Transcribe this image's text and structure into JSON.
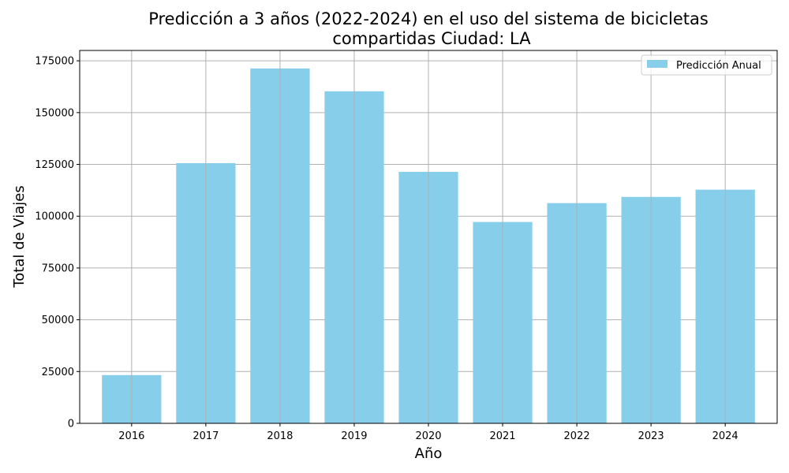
{
  "chart_data": {
    "type": "bar",
    "title_lines": [
      "Predicción a 3 años (2022-2024) en el uso del sistema de bicicletas",
      "compartidas Ciudad: LA"
    ],
    "xlabel": "Año",
    "ylabel": "Total de Viajes",
    "categories": [
      "2016",
      "2017",
      "2018",
      "2019",
      "2020",
      "2021",
      "2022",
      "2023",
      "2024"
    ],
    "series": [
      {
        "name": "Predicción Anual",
        "color": "#87ceeb",
        "values": [
          23300,
          125600,
          171300,
          160300,
          121400,
          97200,
          106300,
          109300,
          112800
        ]
      }
    ],
    "ylim": [
      0,
      180000
    ],
    "yticks": [
      0,
      25000,
      50000,
      75000,
      100000,
      125000,
      150000,
      175000
    ],
    "grid": true,
    "legend": "top-right"
  }
}
